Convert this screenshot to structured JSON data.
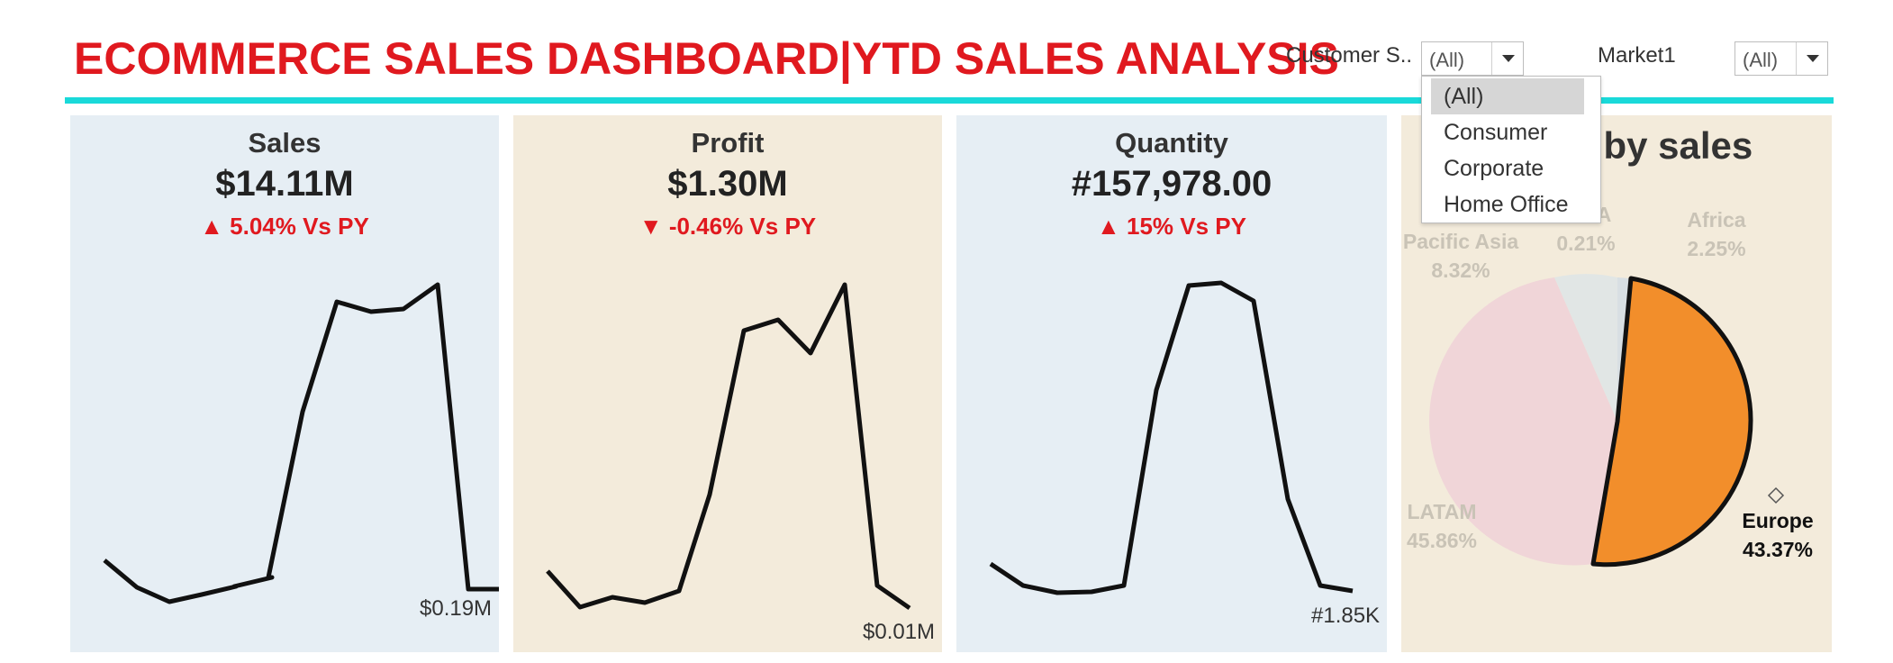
{
  "dashboard": {
    "title": "ECOMMERCE SALES DASHBOARD|YTD SALES ANALYSIS"
  },
  "filters": {
    "customer_segment": {
      "label": "Customer S..",
      "value": "(All)",
      "options": [
        "(All)",
        "Consumer",
        "Corporate",
        "Home Office"
      ],
      "selected_index": 0,
      "open": true
    },
    "market": {
      "label": "Market1",
      "value": "(All)"
    }
  },
  "kpis": {
    "sales": {
      "title": "Sales",
      "value": "$14.11M",
      "delta": "▲ 5.04% Vs PY",
      "last_label": "$0.19M",
      "bg": "#e6eef4"
    },
    "profit": {
      "title": "Profit",
      "value": "$1.30M",
      "delta": "▼ -0.46% Vs PY",
      "last_label": "$0.01M",
      "bg": "#f3ebdb"
    },
    "quantity": {
      "title": "Quantity",
      "value": "#157,978.00",
      "delta": "▲ 15% Vs PY",
      "last_label": "#1.85K",
      "bg": "#e6eef4"
    }
  },
  "market_share": {
    "title": "are by sales",
    "regions": [
      {
        "name": "Pacific Asia",
        "share": "8.32%"
      },
      {
        "name": "A",
        "share": "0.21%"
      },
      {
        "name": "Africa",
        "share": "2.25%"
      },
      {
        "name": "LATAM",
        "share": "45.86%"
      },
      {
        "name": "Europe",
        "share": "43.37%"
      }
    ]
  },
  "colors": {
    "title_red": "#e0191f",
    "accent_cyan": "#19d9d9",
    "europe_orange": "#f28e2b",
    "latam_pink": "#f0d5d8",
    "pacific_asia": "#e3e6e4"
  }
}
